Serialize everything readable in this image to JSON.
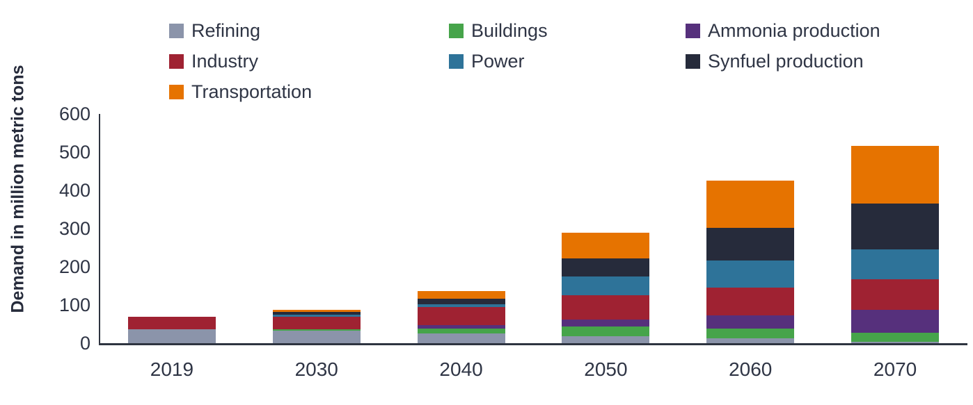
{
  "chart_data": {
    "type": "bar",
    "stacked": true,
    "title": "",
    "xlabel": "",
    "ylabel": "Demand in million metric tons",
    "ylim": [
      0,
      600
    ],
    "yticks": [
      0,
      100,
      200,
      300,
      400,
      500,
      600
    ],
    "grid": false,
    "legend_position": "top",
    "categories": [
      "2019",
      "2030",
      "2040",
      "2050",
      "2060",
      "2070"
    ],
    "series": [
      {
        "name": "Refining",
        "color": "#8B94AA",
        "values": [
          36,
          33,
          26,
          18,
          12,
          4
        ]
      },
      {
        "name": "Buildings",
        "color": "#46A44A",
        "values": [
          0,
          3,
          12,
          25,
          26,
          24
        ]
      },
      {
        "name": "Ammonia production",
        "color": "#56307C",
        "values": [
          0,
          0,
          9,
          18,
          34,
          60
        ]
      },
      {
        "name": "Industry",
        "color": "#9F2232",
        "values": [
          33,
          34,
          48,
          65,
          74,
          79
        ]
      },
      {
        "name": "Power",
        "color": "#2E7399",
        "values": [
          0,
          5,
          7,
          49,
          70,
          79
        ]
      },
      {
        "name": "Synfuel production",
        "color": "#262B3B",
        "values": [
          0,
          7,
          15,
          46,
          86,
          119
        ]
      },
      {
        "name": "Transportation",
        "color": "#E67300",
        "values": [
          0,
          5,
          19,
          69,
          123,
          152
        ]
      }
    ],
    "totals": [
      69,
      87,
      136,
      290,
      425,
      517
    ]
  },
  "legend": {
    "columns": [
      [
        "Refining",
        "Industry",
        "Transportation"
      ],
      [
        "Buildings",
        "Power"
      ],
      [
        "Ammonia production",
        "Synfuel production"
      ]
    ]
  },
  "colors": {
    "text": "#2F3545",
    "axis": "#2E3440"
  }
}
